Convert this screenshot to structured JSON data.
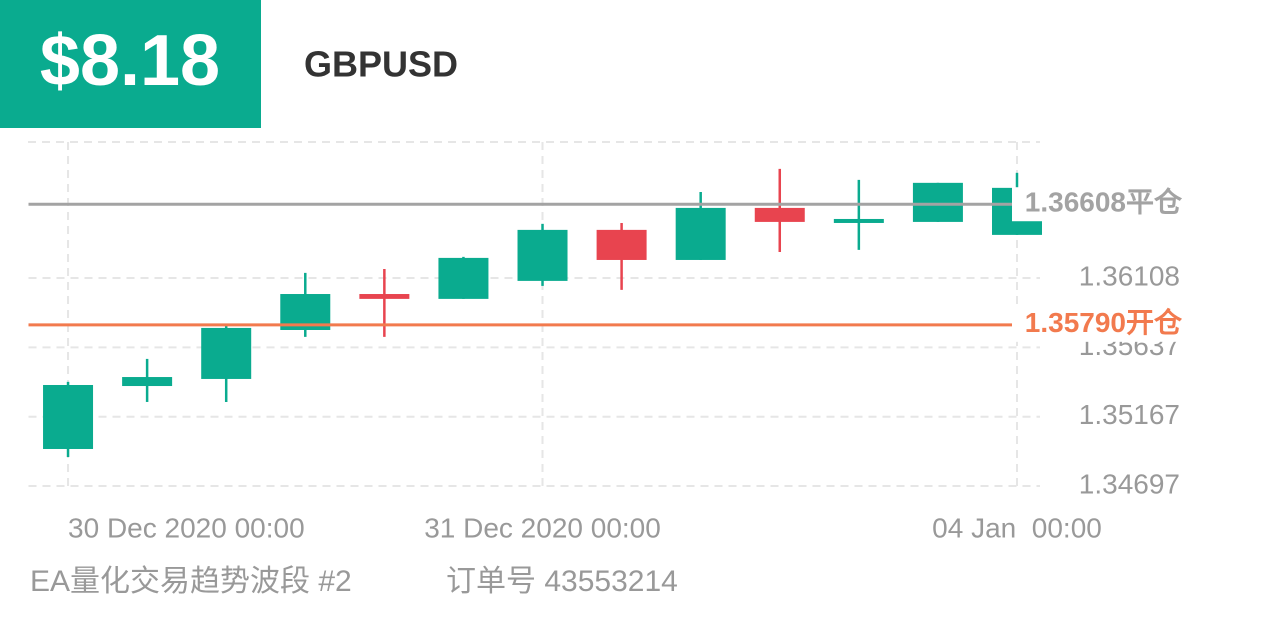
{
  "header": {
    "price": "$8.18",
    "symbol": "GBPUSD"
  },
  "chart_data": {
    "type": "candlestick",
    "categories": [
      "30 Dec 2020 00:00",
      null,
      null,
      null,
      null,
      null,
      "31 Dec 2020 00:00",
      null,
      null,
      null,
      null,
      null,
      "04 Jan  00:00"
    ],
    "open": [
      1.34948,
      1.35375,
      1.35423,
      1.35755,
      1.35999,
      1.35966,
      1.36088,
      1.36434,
      1.3623,
      1.36583,
      1.36495,
      1.36488,
      1.364
    ],
    "high": [
      1.35403,
      1.35559,
      1.35782,
      1.36142,
      1.36169,
      1.36251,
      1.36475,
      1.36481,
      1.36691,
      1.36848,
      1.36773,
      1.36753,
      1.36821
    ],
    "low": [
      1.34894,
      1.35267,
      1.35267,
      1.35708,
      1.35708,
      1.35966,
      1.36054,
      1.36027,
      1.3623,
      1.36284,
      1.36298,
      1.36488,
      1.364
    ],
    "close": [
      1.35382,
      1.35436,
      1.35769,
      1.35999,
      1.35966,
      1.36244,
      1.36434,
      1.3623,
      1.36583,
      1.36488,
      1.36508,
      1.36753,
      1.36719
    ],
    "up_color": "#0aab8f",
    "down_color": "#e8444f",
    "ylim": [
      1.34697,
      1.3703
    ],
    "yticks": [
      1.34697,
      1.35167,
      1.35637,
      1.36108
    ],
    "grid": true,
    "lines": [
      {
        "value": 1.36608,
        "label": "1.36608平仓",
        "color": "#a3a3a3"
      },
      {
        "value": 1.3579,
        "label": "1.35790开仓",
        "color": "#f27a4e"
      }
    ]
  },
  "footer": {
    "strategy": "EA量化交易趋势波段 #2",
    "order": "订单号 43553214"
  }
}
